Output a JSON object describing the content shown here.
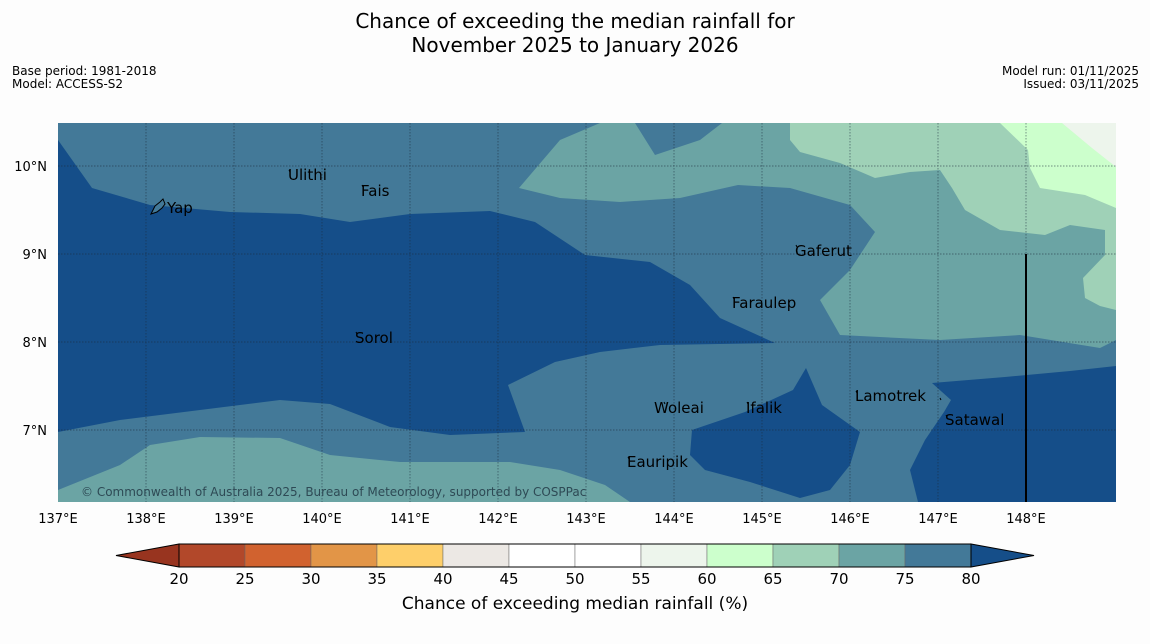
{
  "title": {
    "line1": "Chance of exceeding the median rainfall for",
    "line2": "November 2025 to January 2026"
  },
  "meta": {
    "base_period": "Base period: 1981-2018",
    "model": "Model: ACCESS-S2",
    "model_run": "Model run: 01/11/2025",
    "issued": "Issued: 03/11/2025"
  },
  "map": {
    "lon_ticks": [
      "137°E",
      "138°E",
      "139°E",
      "140°E",
      "141°E",
      "142°E",
      "143°E",
      "144°E",
      "145°E",
      "146°E",
      "147°E",
      "148°E"
    ],
    "lat_ticks": [
      "10°N",
      "9°N",
      "8°N",
      "7°N"
    ],
    "places": [
      "Yap",
      "Ulithi",
      "Fais",
      "Gaferut",
      "Faraulep",
      "Sorol",
      "Woleai",
      "Ifalik",
      "Lamotrek",
      "Satawal",
      "Eauripik"
    ],
    "copyright": "© Commonwealth of Australia 2025, Bureau of Meteorology, supported by COSPPac"
  },
  "colorbar": {
    "ticks": [
      "20",
      "25",
      "30",
      "35",
      "40",
      "45",
      "50",
      "55",
      "60",
      "65",
      "70",
      "75",
      "80"
    ],
    "colors": [
      "#b2482a",
      "#d1622f",
      "#e29547",
      "#fecf6a",
      "#ece8e4",
      "#ffffff",
      "#ffffff",
      "#edf5ec",
      "#ccffcc",
      "#9fd1b7",
      "#6ba4a4",
      "#437998"
    ],
    "under_color": "#98341f",
    "over_color": "#154e89",
    "label": "Chance of exceeding median rainfall (%)"
  }
}
